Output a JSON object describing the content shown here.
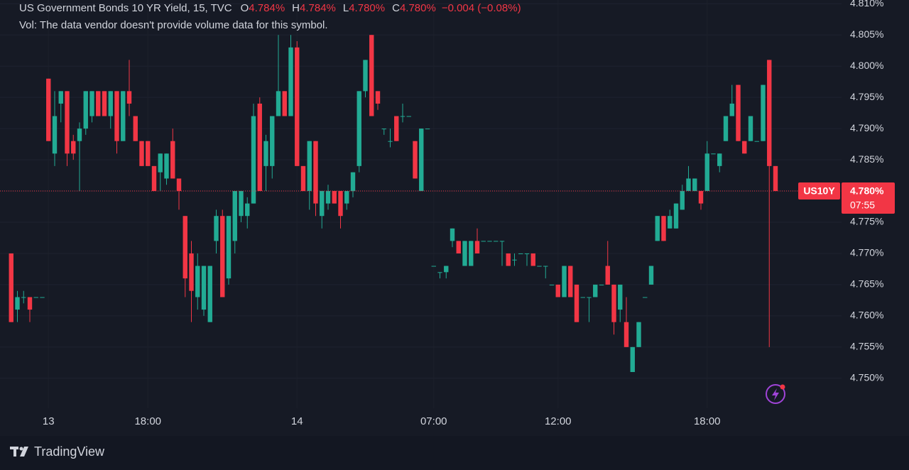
{
  "chart_data": {
    "type": "candlestick",
    "symbol": "US Government Bonds 10 YR Yield, 15, TVC",
    "legend_ohlc": [
      {
        "key": "O",
        "label": "4.784%"
      },
      {
        "key": "H",
        "label": "4.784%"
      },
      {
        "key": "L",
        "label": "4.780%"
      },
      {
        "key": "C",
        "label": "4.780%"
      }
    ],
    "change": "−0.004 (−0.08%)",
    "volume_note": "Vol: The data vendor doesn't provide volume data for this symbol.",
    "up_color": "#22ab94",
    "down_color": "#f23645",
    "categories": [
      null,
      null,
      null,
      null,
      null,
      null,
      "13",
      null,
      null,
      null,
      null,
      null,
      null,
      null,
      null,
      null,
      null,
      null,
      null,
      null,
      null,
      null,
      "18:00",
      null,
      null,
      null,
      null,
      null,
      null,
      null,
      null,
      null,
      null,
      null,
      null,
      null,
      null,
      null,
      null,
      null,
      null,
      null,
      null,
      null,
      null,
      null,
      "14",
      null,
      null,
      null,
      null,
      null,
      null,
      null,
      null,
      null,
      null,
      null,
      null,
      null,
      null,
      null,
      null,
      null,
      null,
      null,
      null,
      null,
      "07:00",
      null,
      null,
      null,
      null,
      null,
      null,
      null,
      null,
      null,
      null,
      null,
      null,
      null,
      null,
      null,
      null,
      null,
      null,
      null,
      "12:00",
      null,
      null,
      null,
      null,
      null,
      null,
      null,
      null,
      null,
      null,
      null,
      null,
      null,
      null,
      null,
      null,
      null,
      null,
      null,
      null,
      null,
      null,
      null,
      "18:00",
      null,
      null,
      null,
      null,
      null,
      null,
      null,
      null,
      null,
      null,
      null
    ],
    "ohlc": [
      [
        4.77,
        4.77,
        4.759,
        4.759
      ],
      [
        4.761,
        4.764,
        4.759,
        4.763
      ],
      [
        4.763,
        4.764,
        4.762,
        4.763
      ],
      [
        4.763,
        4.763,
        4.759,
        4.761
      ],
      [
        4.763,
        4.763,
        4.763,
        4.763
      ],
      [
        4.763,
        4.763,
        4.763,
        4.763
      ],
      [
        4.798,
        4.798,
        4.788,
        4.788
      ],
      [
        4.786,
        4.796,
        4.784,
        4.792
      ],
      [
        4.794,
        4.796,
        4.791,
        4.796
      ],
      [
        4.796,
        4.796,
        4.784,
        4.786
      ],
      [
        4.788,
        4.789,
        4.785,
        4.786
      ],
      [
        4.788,
        4.791,
        4.78,
        4.79
      ],
      [
        4.79,
        4.796,
        4.789,
        4.796
      ],
      [
        4.792,
        4.796,
        4.791,
        4.796
      ],
      [
        4.796,
        4.796,
        4.792,
        4.792
      ],
      [
        4.796,
        4.796,
        4.792,
        4.792
      ],
      [
        4.792,
        4.796,
        4.79,
        4.796
      ],
      [
        4.796,
        4.796,
        4.786,
        4.788
      ],
      [
        4.788,
        4.796,
        4.788,
        4.796
      ],
      [
        4.796,
        4.801,
        4.792,
        4.794
      ],
      [
        4.792,
        4.792,
        4.788,
        4.788
      ],
      [
        4.788,
        4.788,
        4.784,
        4.784
      ],
      [
        4.788,
        4.788,
        4.784,
        4.784
      ],
      [
        4.784,
        4.784,
        4.78,
        4.78
      ],
      [
        4.783,
        4.786,
        4.78,
        4.786
      ],
      [
        4.782,
        4.786,
        4.781,
        4.786
      ],
      [
        4.788,
        4.79,
        4.782,
        4.782
      ],
      [
        4.782,
        4.782,
        4.777,
        4.78
      ],
      [
        4.776,
        4.776,
        4.763,
        4.766
      ],
      [
        4.77,
        4.772,
        4.759,
        4.764
      ],
      [
        4.763,
        4.77,
        4.761,
        4.768
      ],
      [
        4.761,
        4.768,
        4.76,
        4.768
      ],
      [
        4.759,
        4.768,
        4.759,
        4.768
      ],
      [
        4.772,
        4.777,
        4.77,
        4.776
      ],
      [
        4.776,
        4.777,
        4.763,
        4.763
      ],
      [
        4.766,
        4.776,
        4.765,
        4.776
      ],
      [
        4.772,
        4.78,
        4.77,
        4.78
      ],
      [
        4.776,
        4.78,
        4.775,
        4.78
      ],
      [
        4.776,
        4.779,
        4.774,
        4.778
      ],
      [
        4.778,
        4.794,
        4.778,
        4.792
      ],
      [
        4.794,
        4.795,
        4.78,
        4.78
      ],
      [
        4.784,
        4.789,
        4.78,
        4.788
      ],
      [
        4.784,
        4.792,
        4.782,
        4.792
      ],
      [
        4.792,
        4.805,
        4.792,
        4.796
      ],
      [
        4.796,
        4.796,
        4.792,
        4.792
      ],
      [
        4.792,
        4.805,
        4.792,
        4.803
      ],
      [
        4.803,
        4.804,
        4.784,
        4.784
      ],
      [
        4.784,
        4.784,
        4.78,
        4.78
      ],
      [
        4.78,
        4.788,
        4.777,
        4.788
      ],
      [
        4.788,
        4.788,
        4.776,
        4.778
      ],
      [
        4.776,
        4.78,
        4.774,
        4.78
      ],
      [
        4.778,
        4.781,
        4.777,
        4.78
      ],
      [
        4.78,
        4.78,
        4.778,
        4.778
      ],
      [
        4.78,
        4.78,
        4.774,
        4.776
      ],
      [
        4.778,
        4.78,
        4.777,
        4.78
      ],
      [
        4.78,
        4.783,
        4.779,
        4.783
      ],
      [
        4.784,
        4.796,
        4.783,
        4.796
      ],
      [
        4.796,
        4.801,
        4.795,
        4.801
      ],
      [
        4.805,
        4.805,
        4.792,
        4.792
      ],
      [
        4.796,
        4.796,
        4.793,
        4.794
      ],
      [
        4.79,
        4.79,
        4.789,
        4.79
      ],
      [
        4.788,
        4.79,
        4.787,
        4.788
      ],
      [
        4.792,
        4.792,
        4.788,
        4.788
      ],
      [
        4.792,
        4.794,
        4.791,
        4.792
      ],
      [
        4.792,
        4.792,
        4.792,
        4.792
      ],
      [
        4.788,
        4.788,
        4.782,
        4.782
      ],
      [
        4.78,
        4.79,
        4.78,
        4.79
      ],
      [
        4.79,
        4.79,
        4.79,
        4.79
      ],
      [
        4.768,
        4.768,
        4.768,
        4.768
      ],
      [
        4.767,
        4.767,
        4.766,
        4.767
      ],
      [
        4.767,
        4.768,
        4.766,
        4.768
      ],
      [
        4.772,
        4.774,
        4.771,
        4.774
      ],
      [
        4.772,
        4.772,
        4.77,
        4.77
      ],
      [
        4.768,
        4.772,
        4.768,
        4.772
      ],
      [
        4.768,
        4.772,
        4.768,
        4.772
      ],
      [
        4.772,
        4.774,
        4.77,
        4.77
      ],
      [
        4.772,
        4.772,
        4.772,
        4.772
      ],
      [
        4.772,
        4.772,
        4.772,
        4.772
      ],
      [
        4.772,
        4.772,
        4.772,
        4.772
      ],
      [
        4.772,
        4.772,
        4.768,
        4.772
      ],
      [
        4.77,
        4.77,
        4.768,
        4.768
      ],
      [
        4.769,
        4.77,
        4.768,
        4.769
      ],
      [
        4.77,
        4.77,
        4.77,
        4.77
      ],
      [
        4.77,
        4.77,
        4.768,
        4.77
      ],
      [
        4.77,
        4.77,
        4.768,
        4.768
      ],
      [
        4.768,
        4.768,
        4.768,
        4.768
      ],
      [
        4.768,
        4.768,
        4.766,
        4.768
      ],
      [
        4.765,
        4.765,
        4.765,
        4.765
      ],
      [
        4.765,
        4.765,
        4.763,
        4.763
      ],
      [
        4.763,
        4.768,
        4.763,
        4.768
      ],
      [
        4.768,
        4.768,
        4.763,
        4.763
      ],
      [
        4.765,
        4.765,
        4.759,
        4.759
      ],
      [
        4.763,
        4.763,
        4.763,
        4.763
      ],
      [
        4.763,
        4.763,
        4.759,
        4.763
      ],
      [
        4.763,
        4.765,
        4.763,
        4.765
      ],
      [
        4.765,
        4.765,
        4.765,
        4.765
      ],
      [
        4.768,
        4.772,
        4.765,
        4.765
      ],
      [
        4.765,
        4.765,
        4.757,
        4.759
      ],
      [
        4.761,
        4.765,
        4.759,
        4.765
      ],
      [
        4.759,
        4.763,
        4.755,
        4.755
      ],
      [
        4.751,
        4.755,
        4.751,
        4.755
      ],
      [
        4.755,
        4.759,
        4.755,
        4.759
      ],
      [
        4.763,
        4.763,
        4.763,
        4.763
      ],
      [
        4.765,
        4.768,
        4.765,
        4.768
      ],
      [
        4.772,
        4.776,
        4.772,
        4.776
      ],
      [
        4.776,
        4.776,
        4.772,
        4.772
      ],
      [
        4.774,
        4.777,
        4.774,
        4.776
      ],
      [
        4.774,
        4.778,
        4.774,
        4.778
      ],
      [
        4.777,
        4.781,
        4.777,
        4.78
      ],
      [
        4.78,
        4.784,
        4.78,
        4.782
      ],
      [
        4.78,
        4.782,
        4.78,
        4.782
      ],
      [
        4.78,
        4.78,
        4.777,
        4.778
      ],
      [
        4.78,
        4.788,
        4.78,
        4.786
      ],
      [
        4.786,
        4.786,
        4.786,
        4.786
      ],
      [
        4.784,
        4.786,
        4.783,
        4.786
      ],
      [
        4.788,
        4.792,
        4.788,
        4.792
      ],
      [
        4.792,
        4.797,
        4.792,
        4.794
      ],
      [
        4.797,
        4.797,
        4.788,
        4.788
      ],
      [
        4.788,
        4.788,
        4.786,
        4.786
      ],
      [
        4.788,
        4.792,
        4.788,
        4.792
      ],
      [
        4.788,
        4.788,
        4.788,
        4.788
      ],
      [
        4.788,
        4.797,
        4.788,
        4.797
      ],
      [
        4.801,
        4.801,
        4.755,
        4.784
      ],
      [
        4.784,
        4.784,
        4.78,
        4.78
      ]
    ],
    "ylim": [
      4.7452,
      4.8106
    ],
    "yticks": [
      {
        "value": 4.75,
        "label": "4.750%"
      },
      {
        "value": 4.755,
        "label": "4.755%"
      },
      {
        "value": 4.76,
        "label": "4.760%"
      },
      {
        "value": 4.765,
        "label": "4.765%"
      },
      {
        "value": 4.77,
        "label": "4.770%"
      },
      {
        "value": 4.775,
        "label": "4.775%"
      },
      {
        "value": 4.78,
        "label": "4.780%"
      },
      {
        "value": 4.785,
        "label": "4.785%"
      },
      {
        "value": 4.79,
        "label": "4.790%"
      },
      {
        "value": 4.795,
        "label": "4.795%"
      },
      {
        "value": 4.8,
        "label": "4.800%"
      },
      {
        "value": 4.805,
        "label": "4.805%"
      },
      {
        "value": 4.81,
        "label": "4.810%"
      }
    ],
    "grid": true,
    "last_price": {
      "value": 4.78,
      "label": "4.780%"
    },
    "symbol_tag": "US10Y",
    "countdown": "07:55",
    "brand": "TradingView"
  }
}
